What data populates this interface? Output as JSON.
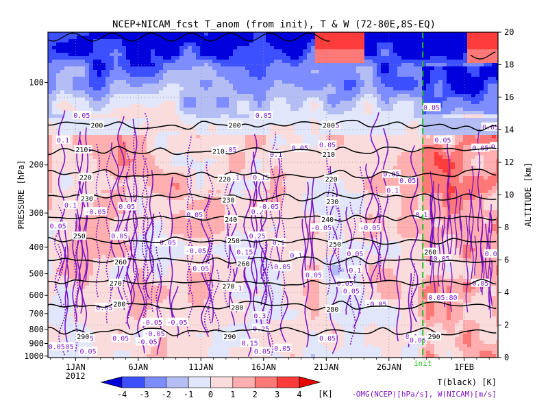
{
  "chart_data": {
    "type": "heatmap",
    "title": "NCEP+NICAM_fcst T_anom (from init), T & W  (72-80E,8S-EQ)",
    "xlabel": "",
    "ylabel": "PRESSURE [hPa]",
    "ylabel_right": "ALTITUDE [km]",
    "year_label": "2012",
    "x_ticks": [
      "1JAN",
      "6JAN",
      "11JAN",
      "16JAN",
      "21JAN",
      "26JAN",
      "1FEB"
    ],
    "x_tick_days": [
      1,
      6,
      11,
      16,
      21,
      26,
      32
    ],
    "xlim_days": [
      -1.2,
      34.7
    ],
    "y_ticks_pressure": [
      100,
      200,
      300,
      400,
      500,
      600,
      700,
      800,
      900,
      1000
    ],
    "y_ticks_altitude_km": [
      0,
      2,
      4,
      6,
      8,
      10,
      12,
      14,
      16,
      18,
      20
    ],
    "ylim_altitude_km": [
      0,
      20
    ],
    "init_line": {
      "label": "init",
      "day": 28.7,
      "color": "#22c21c"
    },
    "temperature_contours": {
      "color": "#000000",
      "levels": [
        200,
        210,
        220,
        230,
        240,
        250,
        260,
        270,
        280,
        290
      ],
      "altitude_km": [
        14.3,
        12.7,
        11.3,
        9.9,
        8.6,
        7.2,
        6.0,
        4.6,
        3.2,
        1.6
      ]
    },
    "contour_label_items": [
      {
        "text": "200",
        "day": 2.7,
        "alt": 14.3
      },
      {
        "text": "200",
        "day": 13.7,
        "alt": 14.3
      },
      {
        "text": "200",
        "day": 21.2,
        "alt": 14.3
      },
      {
        "text": "210",
        "day": 1.5,
        "alt": 12.8
      },
      {
        "text": "210",
        "day": 12.4,
        "alt": 12.7
      },
      {
        "text": "210",
        "day": 21.2,
        "alt": 12.5
      },
      {
        "text": "220",
        "day": 1.8,
        "alt": 11.1
      },
      {
        "text": "220",
        "day": 12.9,
        "alt": 11.0
      },
      {
        "text": "220",
        "day": 21.4,
        "alt": 11.0
      },
      {
        "text": "230",
        "day": 1.9,
        "alt": 9.8
      },
      {
        "text": "230",
        "day": 13.2,
        "alt": 9.7
      },
      {
        "text": "230",
        "day": 21.5,
        "alt": 9.6
      },
      {
        "text": "240",
        "day": 13.4,
        "alt": 8.5
      },
      {
        "text": "240",
        "day": 21.1,
        "alt": 8.5
      },
      {
        "text": "250",
        "day": 1.3,
        "alt": 7.5
      },
      {
        "text": "250",
        "day": 13.6,
        "alt": 7.2
      },
      {
        "text": "250",
        "day": 21.7,
        "alt": 7.0
      },
      {
        "text": "260",
        "day": 4.6,
        "alt": 5.9
      },
      {
        "text": "260",
        "day": 14.4,
        "alt": 5.8
      },
      {
        "text": "260",
        "day": 29.3,
        "alt": 6.5
      },
      {
        "text": "270",
        "day": 4.2,
        "alt": 4.6
      },
      {
        "text": "270",
        "day": 13.2,
        "alt": 4.4
      },
      {
        "text": "280",
        "day": 4.5,
        "alt": 3.3
      },
      {
        "text": "280",
        "day": 13.9,
        "alt": 3.1
      },
      {
        "text": "280",
        "day": 21.5,
        "alt": 3.0
      },
      {
        "text": "290",
        "day": 1.6,
        "alt": 1.3
      },
      {
        "text": "290",
        "day": 13.3,
        "alt": 1.3
      },
      {
        "text": "290",
        "day": 29.6,
        "alt": 1.3
      }
    ],
    "w_contour_labels": [
      {
        "text": "0.05",
        "day": 1.5,
        "alt": 14.9
      },
      {
        "text": "0.1",
        "day": 0.0,
        "alt": 13.4
      },
      {
        "text": "0.05",
        "day": 1.6,
        "alt": 12.8
      },
      {
        "text": "0.1",
        "day": 0.6,
        "alt": 9.4
      },
      {
        "text": "-0.05",
        "day": 2.6,
        "alt": 9.0
      },
      {
        "text": "0.05",
        "day": 5.1,
        "alt": 9.3
      },
      {
        "text": "0.05",
        "day": -0.4,
        "alt": 8.1
      },
      {
        "text": "0.05",
        "day": 4.5,
        "alt": 7.5
      },
      {
        "text": "-0.05",
        "day": 8.2,
        "alt": 7.1
      },
      {
        "text": "-0.05",
        "day": 10.6,
        "alt": 6.6
      },
      {
        "text": "0.05",
        "day": 11.0,
        "alt": 5.5
      },
      {
        "text": "0.05",
        "day": 10.5,
        "alt": 8.8
      },
      {
        "text": "0.05",
        "day": 13.2,
        "alt": 12.8
      },
      {
        "text": "0.1",
        "day": 13.6,
        "alt": 11.1
      },
      {
        "text": "0.15",
        "day": 15.8,
        "alt": 11.1
      },
      {
        "text": "0.05",
        "day": 16.0,
        "alt": 14.9
      },
      {
        "text": "0.1",
        "day": 17.0,
        "alt": 12.5
      },
      {
        "text": "0.05",
        "day": 18.9,
        "alt": 12.9
      },
      {
        "text": "0.2",
        "day": 15.5,
        "alt": 9.0
      },
      {
        "text": "0.25",
        "day": 15.5,
        "alt": 7.5
      },
      {
        "text": "0.15",
        "day": 14.5,
        "alt": 6.5
      },
      {
        "text": "0.1",
        "day": 17.2,
        "alt": 7.1
      },
      {
        "text": "0.1",
        "day": 18.6,
        "alt": 6.3
      },
      {
        "text": "0.1",
        "day": 13.8,
        "alt": 4.3
      },
      {
        "text": "0.05",
        "day": 17.5,
        "alt": 5.6
      },
      {
        "text": "0.05",
        "day": 20.0,
        "alt": 5.1
      },
      {
        "text": "0.3",
        "day": 15.7,
        "alt": 2.6
      },
      {
        "text": "0.25",
        "day": 15.8,
        "alt": 1.8
      },
      {
        "text": "0.15",
        "day": 14.9,
        "alt": 0.9
      },
      {
        "text": "0.05",
        "day": 15.9,
        "alt": 0.4
      },
      {
        "text": "0.05",
        "day": 17.5,
        "alt": 0.6
      },
      {
        "text": "0.05",
        "day": 21.1,
        "alt": 13.1
      },
      {
        "text": "0.05",
        "day": 21.4,
        "alt": 14.3
      },
      {
        "text": "-0.05",
        "day": 20.6,
        "alt": 8.0
      },
      {
        "text": "-0.05",
        "day": 24.5,
        "alt": 8.0
      },
      {
        "text": "0.05",
        "day": 23.3,
        "alt": 6.4
      },
      {
        "text": "0.1",
        "day": 23.3,
        "alt": 5.4
      },
      {
        "text": "0.05",
        "day": 22.5,
        "alt": 4.6
      },
      {
        "text": "0.05",
        "day": 23.0,
        "alt": 4.1
      },
      {
        "text": "-0.05",
        "day": 25.0,
        "alt": 3.3
      },
      {
        "text": "0.05",
        "day": 21.1,
        "alt": 1.2
      },
      {
        "text": "0.05",
        "day": 26.2,
        "alt": 11.3
      },
      {
        "text": "0.05",
        "day": 27.5,
        "alt": 10.9
      },
      {
        "text": "0.1",
        "day": 26.3,
        "alt": 10.3
      },
      {
        "text": "0.1",
        "day": 28.6,
        "alt": 8.8
      },
      {
        "text": "0.05",
        "day": 29.4,
        "alt": 15.4
      },
      {
        "text": "0.05",
        "day": 30.3,
        "alt": 13.4
      },
      {
        "text": "0.05",
        "day": 33.3,
        "alt": 12.9
      },
      {
        "text": "0.05",
        "day": 34.1,
        "alt": 14.2
      },
      {
        "text": "0.05",
        "day": 34.8,
        "alt": 13.0
      },
      {
        "text": "0.05",
        "day": 30.2,
        "alt": 6.1
      },
      {
        "text": "0.05",
        "day": 33.3,
        "alt": 4.6
      },
      {
        "text": "0.05",
        "day": 34.3,
        "alt": 6.4
      },
      {
        "text": "0.05:80",
        "day": 30.3,
        "alt": 3.7
      },
      {
        "text": "0.05",
        "day": 3.3,
        "alt": 3.1
      },
      {
        "text": "-0.05",
        "day": 7.1,
        "alt": 2.2
      },
      {
        "text": "-0.05",
        "day": 9.1,
        "alt": 2.2
      },
      {
        "text": "-0.05",
        "day": 7.3,
        "alt": 1.5
      },
      {
        "text": "-0.05",
        "day": 6.7,
        "alt": 1.0
      },
      {
        "text": "0.05",
        "day": 1.8,
        "alt": 1.2
      },
      {
        "text": "0.05",
        "day": 4.6,
        "alt": 1.2
      },
      {
        "text": "0.05",
        "day": 0.2,
        "alt": 0.7
      },
      {
        "text": "0.05",
        "day": 2.0,
        "alt": 0.4
      },
      {
        "text": "0.05",
        "day": -0.5,
        "alt": 0.7
      },
      {
        "text": "0.1",
        "day": 27.8,
        "alt": 1.3
      },
      {
        "text": "0.05",
        "day": 28.3,
        "alt": 1.1
      },
      {
        "text": "-0.05",
        "day": 16.4,
        "alt": 9.3
      }
    ],
    "colorbar": {
      "levels": [
        -4,
        -3,
        -2,
        -1,
        0,
        1,
        2,
        3,
        4
      ],
      "unit": "[K]",
      "colors": [
        "#0000dd",
        "#3c50ff",
        "#7d8cff",
        "#b4bef5",
        "#e1e6fa",
        "#fadcdc",
        "#ffafaf",
        "#ff7878",
        "#ff3c3c",
        "#e80000"
      ]
    },
    "legend_lines": [
      "T(black) [K]",
      "-OMG(NCEP)[hPa/s], W(NICAM)[m/s]"
    ]
  }
}
